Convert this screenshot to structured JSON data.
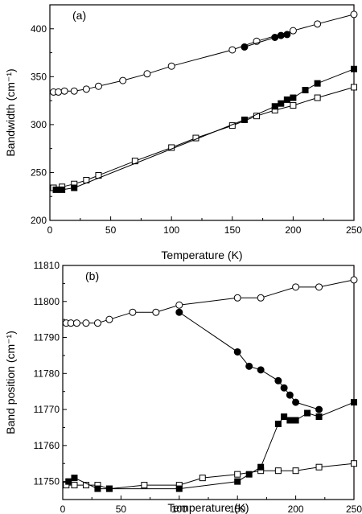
{
  "chart_data": [
    {
      "type": "line",
      "panel_label": "(a)",
      "xlabel": "Temperature (K)",
      "ylabel": "Bandwidth (cm⁻¹)",
      "xlim": [
        0,
        250
      ],
      "ylim": [
        200,
        425
      ],
      "xticks": [
        0,
        50,
        100,
        150,
        200,
        250
      ],
      "yticks": [
        200,
        250,
        300,
        350,
        400
      ],
      "series": [
        {
          "marker": "circle-open",
          "x": [
            3,
            7,
            12,
            20,
            30,
            40,
            60,
            80,
            100,
            150,
            170,
            200,
            220,
            250
          ],
          "y": [
            334,
            334,
            335,
            335,
            337,
            340,
            346,
            353,
            361,
            378,
            387,
            398,
            405,
            415
          ]
        },
        {
          "marker": "circle-filled",
          "x": [
            160,
            185,
            190,
            195
          ],
          "y": [
            381,
            391,
            393,
            394
          ]
        },
        {
          "marker": "square-open",
          "x": [
            3,
            10,
            20,
            30,
            40,
            70,
            100,
            120,
            150,
            170,
            185,
            200,
            220,
            250
          ],
          "y": [
            234,
            235,
            238,
            242,
            247,
            262,
            276,
            286,
            299,
            309,
            315,
            320,
            328,
            339
          ]
        },
        {
          "marker": "square-filled",
          "x": [
            5,
            10,
            20,
            160,
            185,
            190,
            195,
            200,
            210,
            220,
            250
          ],
          "y": [
            232,
            232,
            234,
            305,
            319,
            322,
            326,
            328,
            336,
            343,
            358
          ]
        }
      ]
    },
    {
      "type": "line",
      "panel_label": "(b)",
      "xlabel": "Temperature (K)",
      "ylabel": "Band position (cm⁻¹)",
      "xlim": [
        0,
        250
      ],
      "ylim": [
        11745,
        11810
      ],
      "xticks": [
        0,
        50,
        100,
        150,
        200,
        250
      ],
      "yticks": [
        11750,
        11760,
        11770,
        11780,
        11790,
        11800,
        11810
      ],
      "series": [
        {
          "marker": "circle-open",
          "x": [
            3,
            7,
            12,
            20,
            30,
            40,
            60,
            80,
            100,
            150,
            170,
            200,
            220,
            250
          ],
          "y": [
            11794,
            11794,
            11794,
            11794,
            11794,
            11795,
            11797,
            11797,
            11799,
            11801,
            11801,
            11804,
            11804,
            11806
          ]
        },
        {
          "marker": "circle-filled",
          "x": [
            100,
            150,
            160,
            170,
            185,
            190,
            195,
            200,
            220
          ],
          "y": [
            11797,
            11786,
            11782,
            11781,
            11778,
            11776,
            11774,
            11772,
            11770
          ]
        },
        {
          "marker": "square-open",
          "x": [
            3,
            10,
            20,
            30,
            40,
            70,
            100,
            120,
            150,
            170,
            185,
            200,
            220,
            250
          ],
          "y": [
            11749,
            11749,
            11749,
            11749,
            11748,
            11749,
            11749,
            11751,
            11752,
            11753,
            11753,
            11753,
            11754,
            11755
          ]
        },
        {
          "marker": "square-filled",
          "x": [
            5,
            10,
            30,
            40,
            100,
            150,
            160,
            170,
            185,
            190,
            195,
            200,
            210,
            220,
            250
          ],
          "y": [
            11750,
            11751,
            11748,
            11748,
            11748,
            11750,
            11752,
            11754,
            11766,
            11768,
            11767,
            11767,
            11769,
            11768,
            11772
          ]
        }
      ]
    }
  ]
}
